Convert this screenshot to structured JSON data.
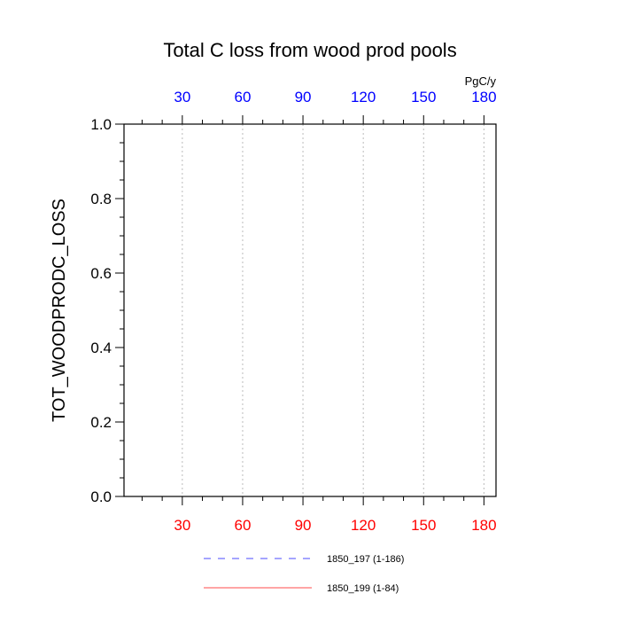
{
  "chart_data": {
    "type": "line",
    "title": "Total C loss from wood prod pools",
    "ylabel": "TOT_WOODPRODC_LOSS",
    "xlabel": "",
    "units_label": "PgC/y",
    "ylim": [
      0.0,
      1.0
    ],
    "xlim": [
      1,
      186
    ],
    "y_ticks": [
      0.0,
      0.2,
      0.4,
      0.6,
      0.8,
      1.0
    ],
    "y_tick_labels": [
      "0.0",
      "0.2",
      "0.4",
      "0.6",
      "0.8",
      "1.0"
    ],
    "x_ticks_bottom": [
      30,
      60,
      90,
      120,
      150,
      180
    ],
    "x_tick_labels_bottom": [
      "30",
      "60",
      "90",
      "120",
      "150",
      "180"
    ],
    "x_ticks_top": [
      30,
      60,
      90,
      120,
      150,
      180
    ],
    "x_tick_labels_top": [
      "30",
      "60",
      "90",
      "120",
      "150",
      "180"
    ],
    "grid": "vertical dashed at major x ticks",
    "legend_position": "bottom",
    "series": [
      {
        "name": "1850_197 (1-186)",
        "color": "#0000ff",
        "style": "dashed",
        "x": [
          1,
          186
        ],
        "y": [
          0.0,
          0.0
        ]
      },
      {
        "name": "1850_199 (1-84)",
        "color": "#ff0000",
        "style": "solid",
        "x": [
          1,
          84
        ],
        "y": [
          0.0,
          0.0
        ]
      }
    ],
    "colors": {
      "top_tick_labels": "#0000ff",
      "bottom_tick_labels": "#ff0000",
      "axis": "#000000",
      "grid": "#bbbbbb"
    }
  }
}
